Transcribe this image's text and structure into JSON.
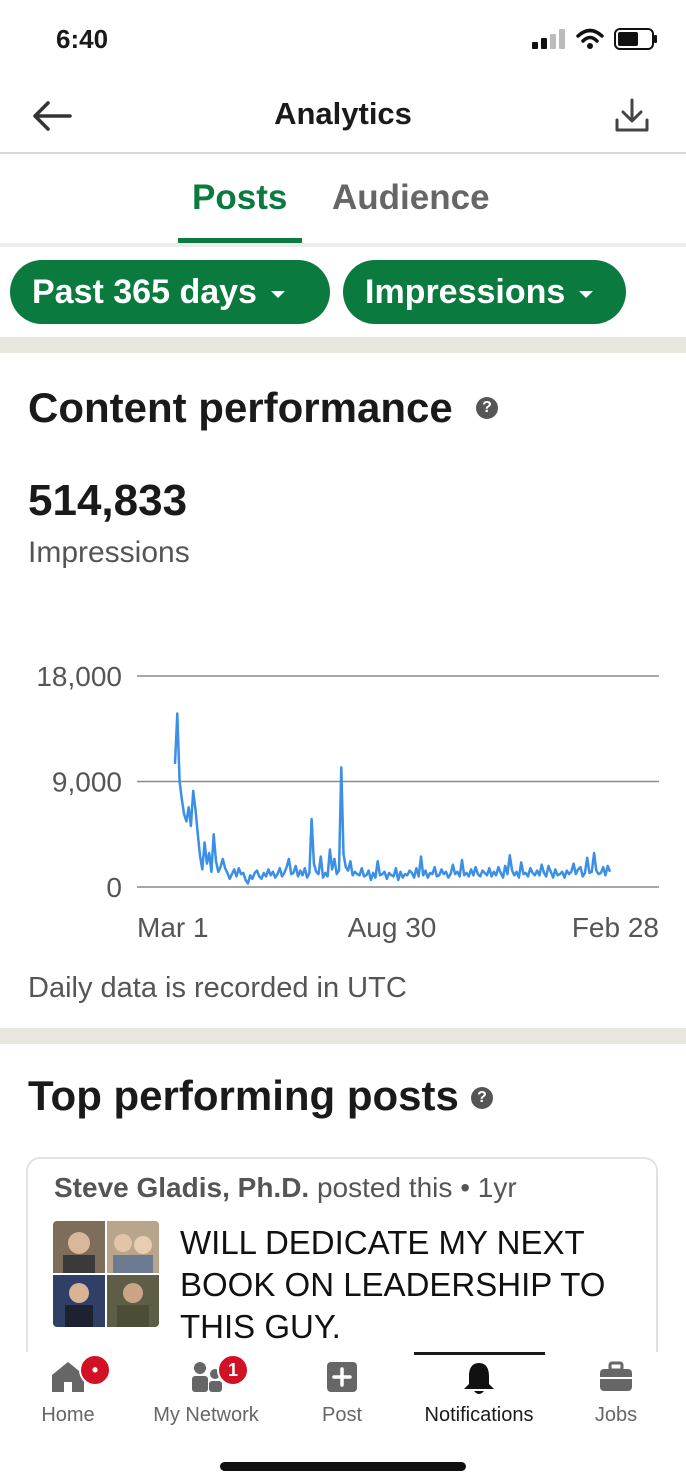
{
  "status_bar": {
    "time": "6:40"
  },
  "header": {
    "title": "Analytics"
  },
  "tabs": [
    {
      "label": "Posts",
      "active": true
    },
    {
      "label": "Audience",
      "active": false
    }
  ],
  "filters": {
    "range_label": "Past 365 days",
    "metric_label": "Impressions"
  },
  "content_performance": {
    "heading": "Content performance",
    "total": "514,833",
    "metric": "Impressions",
    "footnote": "Daily data is recorded in UTC"
  },
  "chart_data": {
    "type": "line",
    "y_ticks": [
      "18,000",
      "9,000",
      "0"
    ],
    "x_ticks": [
      "Mar 1",
      "Aug 30",
      "Feb 28"
    ],
    "ylim": [
      0,
      18000
    ],
    "grid": true,
    "color": "#3b8fe6",
    "series": [
      {
        "values": [
          10500,
          14800,
          9000,
          7500,
          6200,
          5600,
          6800,
          5200,
          8200,
          6600,
          4500,
          2600,
          1500,
          3800,
          2000,
          2900,
          1300,
          4500,
          2200,
          1300,
          1700,
          2400,
          1600,
          1200,
          700,
          1100,
          1500,
          900,
          1600,
          1100,
          1200,
          600,
          300,
          1000,
          700,
          1200,
          1400,
          900,
          700,
          1200,
          900,
          1500,
          1000,
          1300,
          800,
          1100,
          1600,
          900,
          1200,
          1700,
          2400,
          1100,
          1200,
          1800,
          900,
          1400,
          1000,
          1600,
          800,
          1200,
          5800,
          2000,
          1300,
          1100,
          2600,
          800,
          1200,
          900,
          3200,
          1500,
          2400,
          1100,
          1400,
          10200,
          2800,
          1700,
          1400,
          2200,
          1000,
          1300,
          1100,
          1000,
          1600,
          900,
          1000,
          1400,
          600,
          1200,
          800,
          2200,
          1000,
          1100,
          1300,
          700,
          1200,
          1000,
          900,
          1600,
          600,
          1300,
          800,
          1100,
          1000,
          1400,
          1200,
          800,
          1600,
          900,
          2600,
          1000,
          1400,
          800,
          1200,
          1100,
          1700,
          900,
          1000,
          1500,
          1100,
          1300,
          800,
          1100,
          1900,
          1100,
          1300,
          900,
          2300,
          1000,
          1200,
          900,
          1500,
          1000,
          1700,
          1100,
          900,
          1400,
          1200,
          1000,
          1600,
          900,
          1300,
          1000,
          1700,
          1200,
          800,
          1800,
          1100,
          2700,
          1400,
          1000,
          1300,
          800,
          2100,
          1100,
          1200,
          900,
          1600,
          1200,
          1000,
          1400,
          1000,
          1900,
          1200,
          900,
          1800,
          1300,
          800,
          1500,
          1000,
          1100,
          1300,
          800,
          1400,
          1100,
          1300,
          2000,
          1100,
          1500,
          1700,
          900,
          1200,
          2500,
          1200,
          1300,
          2900,
          1400,
          1100,
          1200,
          1700,
          1000,
          1800,
          1300
        ]
      }
    ]
  },
  "top_posts": {
    "heading": "Top performing posts",
    "items": [
      {
        "author": "Steve Gladis, Ph.D.",
        "meta": "posted this",
        "age": "• 1yr",
        "text": "WILL DEDICATE MY NEXT BOOK ON LEADERSHIP TO THIS GUY."
      }
    ]
  },
  "bottom_nav": {
    "items": [
      {
        "label": "Home",
        "icon": "home-icon",
        "badge": ""
      },
      {
        "label": "My Network",
        "icon": "people-icon",
        "badge": "1"
      },
      {
        "label": "Post",
        "icon": "plus-square-icon",
        "badge": ""
      },
      {
        "label": "Notifications",
        "icon": "bell-icon",
        "badge": ""
      },
      {
        "label": "Jobs",
        "icon": "briefcase-icon",
        "badge": ""
      }
    ],
    "active": "Notifications"
  },
  "colors": {
    "brand_green": "#0b7a3e",
    "chart_line": "#3b8fe6",
    "badge_red": "#d11124"
  }
}
